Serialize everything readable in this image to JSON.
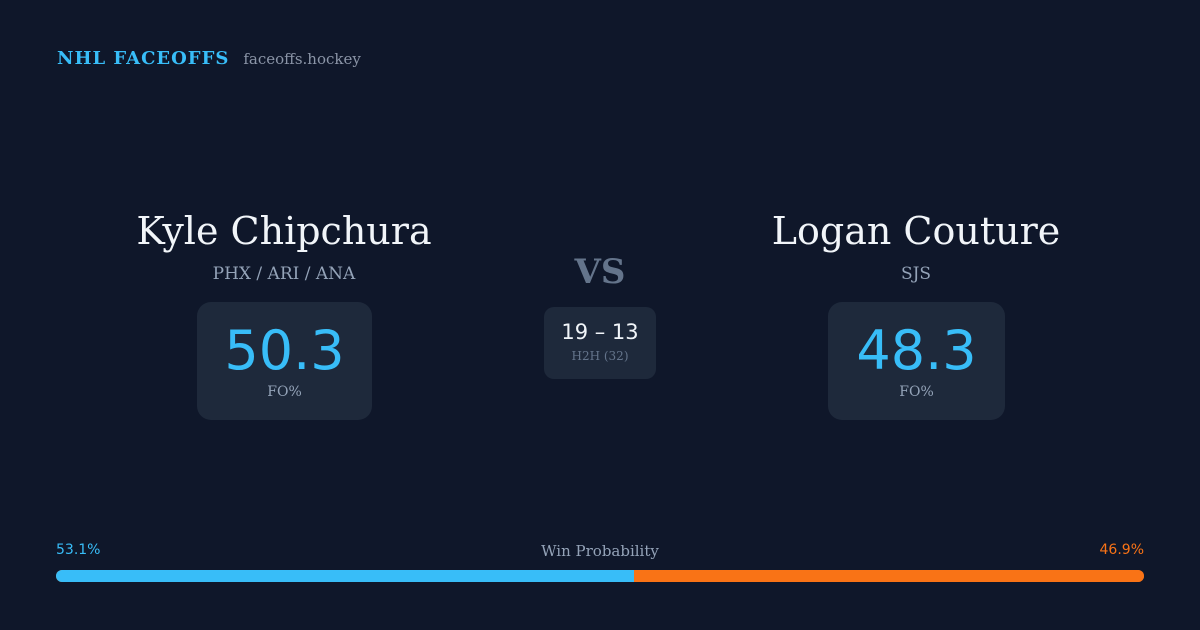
{
  "brand": {
    "title": "NHL FACEOFFS",
    "site": "faceoffs.hockey"
  },
  "player1": {
    "name": "Kyle Chipchura",
    "teams": "PHX / ARI / ANA",
    "fo_value": "50.3",
    "fo_label": "FO%"
  },
  "player2": {
    "name": "Logan Couture",
    "teams": "SJS",
    "fo_value": "48.3",
    "fo_label": "FO%"
  },
  "vs_label": "VS",
  "h2h": {
    "score": "19 – 13",
    "label": "H2H (32)"
  },
  "win_probability": {
    "title": "Win Probability",
    "left_label": "53.1%",
    "right_label": "46.9%",
    "left_percent": 53.1,
    "right_percent": 46.9
  },
  "colors": {
    "background": "#0f172a",
    "card": "#1e293b",
    "accent_blue": "#38bdf8",
    "accent_orange": "#f97316"
  }
}
